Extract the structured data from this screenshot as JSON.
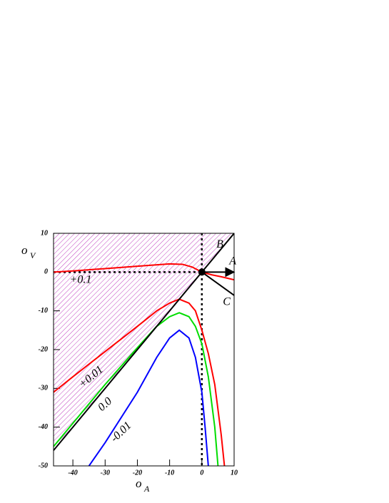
{
  "chart_data": {
    "type": "line",
    "xlabel": "o",
    "xlabel_sub": "A",
    "ylabel": "o",
    "ylabel_sub": "V",
    "xlim": [
      -46,
      10
    ],
    "ylim": [
      -50,
      10
    ],
    "xticks": [
      -40,
      -30,
      -20,
      -10,
      0,
      10
    ],
    "yticks": [
      10,
      0,
      -10,
      -20,
      -30,
      -40,
      -50
    ],
    "hatch_color": "#c040c0",
    "hlines": [
      0
    ],
    "vlines": [
      0
    ],
    "series": [
      {
        "name": "+0.1",
        "color": "#ff0000",
        "x": [
          -46,
          -40,
          -30,
          -20,
          -10,
          -6,
          -3,
          0,
          3,
          6,
          10
        ],
        "values": [
          0,
          0.3,
          0.9,
          1.5,
          2.1,
          2.0,
          1.3,
          0,
          -0.7,
          -1.2,
          -2
        ]
      },
      {
        "name": "+0.01",
        "color": "#ff0000",
        "x": [
          -46,
          -40,
          -30,
          -20,
          -14,
          -10,
          -7,
          -4,
          -2,
          0,
          2,
          4,
          6,
          7
        ],
        "values": [
          -31,
          -27,
          -20.5,
          -14,
          -10,
          -8,
          -7,
          -8,
          -10,
          -15,
          -21,
          -29,
          -42,
          -50
        ]
      },
      {
        "name": "0.0",
        "color": "#00dd00",
        "x": [
          -46,
          -40,
          -30,
          -20,
          -14,
          -10,
          -7,
          -4,
          -2,
          0,
          2,
          4,
          5
        ],
        "values": [
          -45,
          -39,
          -29,
          -19.5,
          -14,
          -11.5,
          -10.5,
          -11.5,
          -14,
          -18.5,
          -27,
          -40,
          -50
        ]
      },
      {
        "name": "-0.01",
        "color": "#0000ff",
        "x": [
          -35,
          -30,
          -20,
          -14,
          -10,
          -7,
          -4,
          -2,
          0,
          1,
          2
        ],
        "values": [
          -50,
          -44,
          -31,
          -22,
          -17,
          -15,
          -17,
          -22,
          -31,
          -40,
          -50
        ]
      },
      {
        "name": "B",
        "color": "#000000",
        "x": [
          -46,
          10
        ],
        "values": [
          -46,
          10
        ]
      },
      {
        "name": "A",
        "color": "#000000",
        "x": [
          0,
          10
        ],
        "values": [
          0,
          0
        ]
      },
      {
        "name": "C",
        "color": "#000000",
        "x": [
          0,
          10
        ],
        "values": [
          0,
          -6
        ]
      }
    ],
    "point": {
      "x": 0,
      "y": 0
    }
  }
}
